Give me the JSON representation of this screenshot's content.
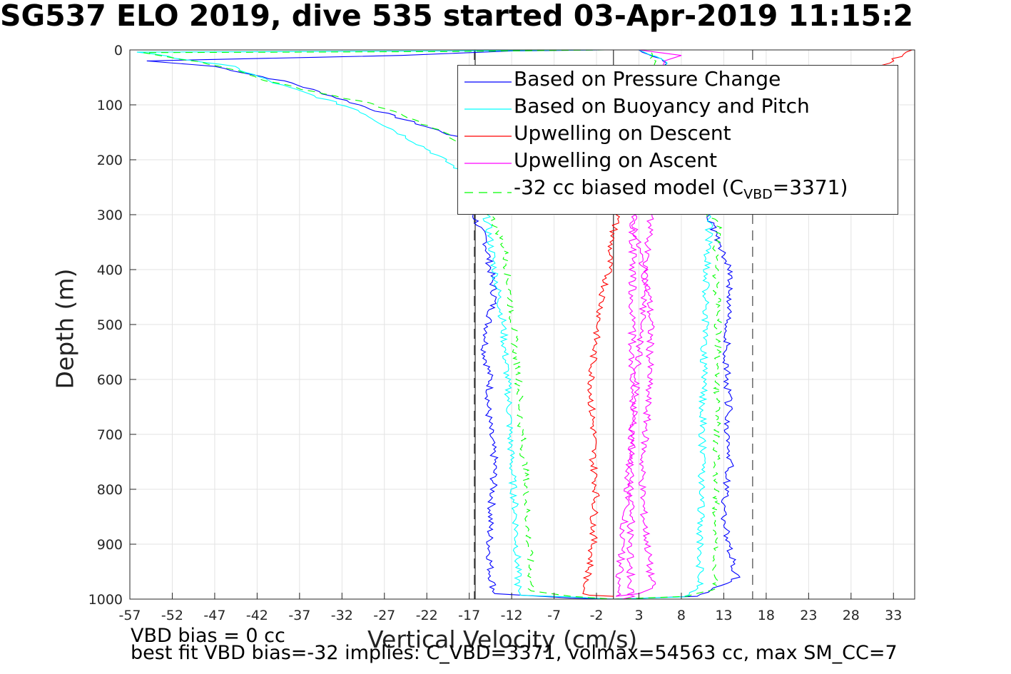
{
  "title": "SG537 ELO 2019, dive 535 started 03-Apr-2019 11:15:2",
  "notes": {
    "line1": "VBD bias = 0 cc",
    "line2": "best fit VBD bias=-32 implies: C_VBD=3371, volmax=54563 cc, max SM_CC=7"
  },
  "legend": {
    "placement": "top-right",
    "items": [
      {
        "label": "Based on Pressure Change",
        "color": "#0000ff",
        "dash": "solid"
      },
      {
        "label": "Based on Buoyancy and Pitch",
        "color": "#00ffff",
        "dash": "solid"
      },
      {
        "label": "Upwelling on Descent",
        "color": "#ff0000",
        "dash": "solid"
      },
      {
        "label": "Upwelling on Ascent",
        "color": "#ff00ff",
        "dash": "solid"
      },
      {
        "label_pre": "-32 cc biased model (C",
        "label_sub": "VBD",
        "label_post": "=3371)",
        "color": "#00ff00",
        "dash": "dashed"
      }
    ]
  },
  "chart_data": {
    "type": "line",
    "title": "SG537 ELO 2019, dive 535 started 03-Apr-2019 11:15:2",
    "xlabel": "Vertical Velocity (cm/s)",
    "ylabel": "Depth (m)",
    "xlim": [
      -57,
      35.5
    ],
    "ylim": [
      0,
      1000
    ],
    "y_reversed": true,
    "grid": true,
    "x_ticks": [
      -57,
      -52,
      -47,
      -42,
      -37,
      -32,
      -27,
      -22,
      -17,
      -12,
      -7,
      -2,
      3,
      8,
      13,
      18,
      23,
      28,
      33
    ],
    "y_ticks": [
      0,
      100,
      200,
      300,
      400,
      500,
      600,
      700,
      800,
      900,
      1000
    ],
    "reference_lines": {
      "zero_solid": [
        0
      ],
      "dashed_limits": [
        -16.4,
        16.4
      ],
      "descent_solid": [
        -16.3
      ]
    },
    "series": [
      {
        "name": "Based on Pressure Change",
        "color": "#0000ff",
        "dash": "solid",
        "x": [
          -1.5,
          -12,
          -25,
          -55,
          -47,
          -38,
          -30,
          -20,
          -15,
          -17,
          -18,
          -16.5,
          -15,
          -14.5,
          -14,
          -14.8,
          -15.2,
          -14.5,
          -14.8,
          -14.5,
          -14,
          -14.2,
          -14.5,
          -14.6,
          -14.5,
          -14,
          -5,
          0,
          10,
          14.5,
          13.5,
          13,
          13.2,
          13.8,
          13.5,
          13.6,
          13.4,
          13.3,
          13.5,
          13.6,
          13.8,
          12.5,
          11,
          12,
          11,
          9,
          6,
          3
        ],
        "y": [
          0,
          2,
          10,
          20,
          30,
          60,
          100,
          150,
          180,
          210,
          220,
          300,
          350,
          400,
          450,
          500,
          550,
          600,
          650,
          700,
          750,
          800,
          850,
          900,
          950,
          990,
          998,
          1000,
          995,
          960,
          900,
          850,
          800,
          750,
          700,
          650,
          600,
          550,
          500,
          450,
          400,
          350,
          300,
          200,
          150,
          100,
          20,
          0
        ]
      },
      {
        "name": "Based on Buoyancy and Pitch",
        "color": "#00ffff",
        "dash": "solid",
        "x": [
          -1,
          -20,
          -56,
          -45,
          -40,
          -30,
          -22,
          -17,
          -15,
          -14.5,
          -14,
          -13.5,
          -13,
          -12.8,
          -12.5,
          -12.3,
          -12.2,
          -12,
          -11.8,
          -11.5,
          -11.4,
          -11.3,
          -11.2,
          -11,
          -11,
          -5,
          0,
          8,
          10.2,
          10.2,
          10.3,
          10.4,
          10.5,
          10.6,
          10.8,
          11,
          11.2,
          11.3,
          11.5,
          10.5,
          9,
          6,
          3
        ],
        "y": [
          0,
          2,
          4,
          30,
          60,
          110,
          180,
          230,
          300,
          350,
          400,
          450,
          500,
          550,
          600,
          650,
          700,
          750,
          800,
          850,
          900,
          950,
          985,
          990,
          993,
          996,
          1000,
          996,
          980,
          900,
          850,
          800,
          700,
          600,
          500,
          400,
          350,
          320,
          300,
          200,
          100,
          20,
          0
        ]
      },
      {
        "name": "-32 cc biased model (CVBD=3371)",
        "color": "#00ff00",
        "dash": "dashed",
        "x": [
          -1,
          -20,
          -55,
          -46,
          -40,
          -28,
          -20,
          -16,
          -14.5,
          -13,
          -12.5,
          -12.2,
          -11.8,
          -11.5,
          -11.2,
          -11,
          -10.8,
          -10.5,
          -10.3,
          -10.2,
          -10,
          -9.8,
          -9.7,
          -5,
          0,
          9,
          12,
          12,
          12,
          12.1,
          12.2,
          12.3,
          12.4,
          12.3,
          12.2,
          12,
          12.2,
          12.5,
          11.2,
          9.2,
          7,
          4
        ],
        "y": [
          0,
          3,
          5,
          30,
          60,
          100,
          150,
          200,
          300,
          350,
          400,
          450,
          500,
          550,
          600,
          650,
          700,
          750,
          800,
          850,
          900,
          950,
          985,
          995,
          1000,
          995,
          980,
          900,
          850,
          800,
          700,
          600,
          550,
          500,
          450,
          400,
          350,
          320,
          300,
          200,
          100,
          0
        ]
      },
      {
        "name": "Upwelling on Descent",
        "color": "#ff0000",
        "dash": "solid",
        "x": [
          0,
          35,
          0.5,
          -0.3,
          -0.6,
          -1.3,
          -1.8,
          -2.3,
          -2.6,
          -2.6,
          -2.3,
          -2.4,
          -2,
          -2.3,
          -2.4,
          -2.9,
          -3.4,
          -3.6,
          -2.8,
          0
        ],
        "y": [
          0,
          0,
          300,
          350,
          400,
          450,
          500,
          550,
          600,
          650,
          700,
          750,
          800,
          850,
          900,
          950,
          980,
          990,
          993,
          995
        ]
      },
      {
        "name": "Upwelling on Ascent",
        "color": "#ff00ff",
        "dash": "solid",
        "x": [
          1,
          2,
          2.3,
          2.8,
          3.6,
          4.2,
          4.4,
          4.3,
          4.2,
          4,
          3.8,
          3.4,
          3.4,
          3.6,
          4,
          4.3,
          4.6,
          3,
          0.5,
          6,
          8,
          5.5,
          3
        ],
        "y": [
          1000,
          995,
          300,
          350,
          400,
          450,
          500,
          550,
          600,
          650,
          700,
          750,
          800,
          850,
          900,
          950,
          980,
          990,
          995,
          20,
          10,
          5,
          0
        ]
      }
    ]
  }
}
